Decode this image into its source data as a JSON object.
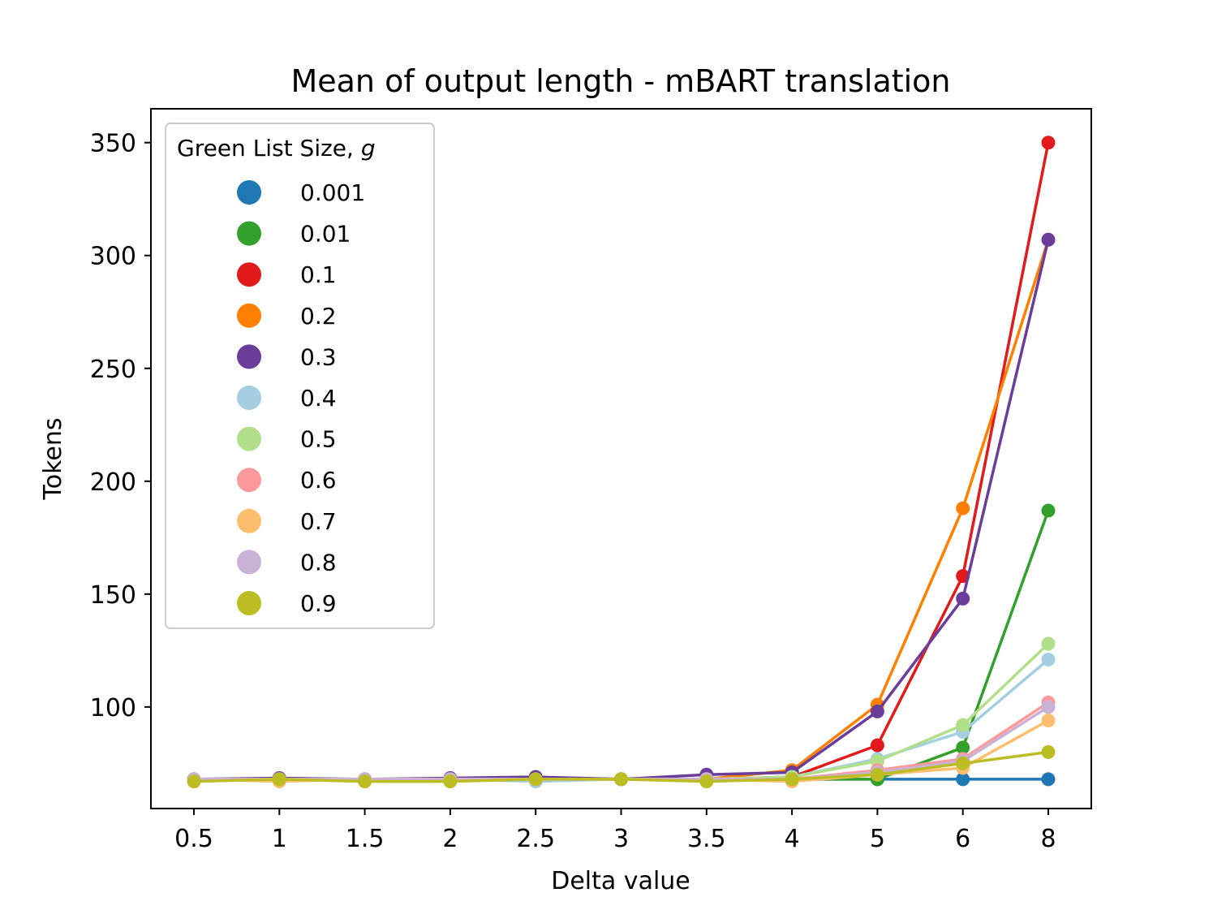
{
  "chart_data": {
    "type": "line",
    "title": "Mean of output length - mBART translation",
    "xlabel": "Delta value",
    "ylabel": "Tokens",
    "categories": [
      "0.5",
      "1",
      "1.5",
      "2",
      "2.5",
      "3",
      "3.5",
      "4",
      "5",
      "6",
      "8"
    ],
    "ylim": [
      55,
      365
    ],
    "yticks": [
      100,
      150,
      200,
      250,
      300,
      350
    ],
    "grid": false,
    "legend": {
      "title": "Green List Size, ",
      "title_symbol": "g",
      "placement": "upper-left"
    },
    "series": [
      {
        "name": "0.001",
        "color": "#1f78b4",
        "values": [
          68,
          68,
          68,
          68,
          68,
          68,
          68,
          68,
          68,
          68,
          68
        ]
      },
      {
        "name": "0.01",
        "color": "#33a02c",
        "values": [
          68,
          68,
          68,
          68,
          68,
          68,
          68,
          68,
          68,
          82,
          187
        ]
      },
      {
        "name": "0.1",
        "color": "#e31a1c",
        "values": [
          68,
          68,
          68,
          68,
          68,
          68,
          68,
          69,
          83,
          158,
          350
        ]
      },
      {
        "name": "0.2",
        "color": "#ff7f00",
        "values": [
          68,
          68,
          68,
          68,
          68,
          68,
          68,
          72,
          101,
          188,
          307
        ]
      },
      {
        "name": "0.3",
        "color": "#6a3d9a",
        "values": [
          68,
          68.5,
          68,
          68.5,
          69,
          68,
          70,
          71,
          98,
          148,
          307
        ]
      },
      {
        "name": "0.4",
        "color": "#a6cee3",
        "values": [
          68,
          68,
          68,
          68,
          67,
          68,
          68,
          69,
          77,
          89,
          121
        ]
      },
      {
        "name": "0.5",
        "color": "#b2df8a",
        "values": [
          68,
          68,
          68,
          68,
          68,
          68,
          68,
          69,
          76,
          92,
          128
        ]
      },
      {
        "name": "0.6",
        "color": "#fb9a99",
        "values": [
          68,
          68,
          68,
          68,
          68,
          68,
          68,
          68,
          72,
          77,
          102
        ]
      },
      {
        "name": "0.7",
        "color": "#fdbf6f",
        "values": [
          68,
          67,
          68,
          68,
          68,
          68,
          68,
          67,
          70,
          73,
          94
        ]
      },
      {
        "name": "0.8",
        "color": "#cab2d6",
        "values": [
          68,
          68,
          68,
          68,
          68,
          68,
          68,
          68,
          71,
          76,
          100
        ]
      },
      {
        "name": "0.9",
        "color": "#bcbd22",
        "values": [
          67,
          68,
          67,
          67,
          68,
          68,
          67,
          68,
          70,
          75,
          80
        ]
      }
    ]
  }
}
